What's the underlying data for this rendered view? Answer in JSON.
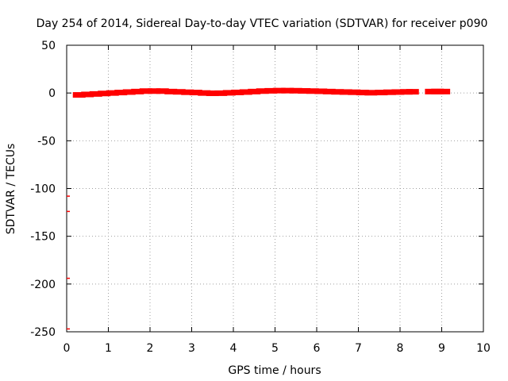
{
  "chart_data": {
    "type": "scatter",
    "title": "Day 254 of 2014, Sidereal Day-to-day VTEC variation (SDTVAR) for receiver p090",
    "xlabel": "GPS time / hours",
    "ylabel": "SDTVAR / TECUs",
    "xlim": [
      0,
      10
    ],
    "ylim": [
      -250,
      50
    ],
    "x_ticks": [
      0,
      1,
      2,
      3,
      4,
      5,
      6,
      7,
      8,
      9,
      10
    ],
    "y_ticks": [
      50,
      0,
      -50,
      -100,
      -150,
      -200,
      -250
    ],
    "grid": true,
    "legend": "none",
    "series": [
      {
        "color": "#ff0000",
        "x": [
          0.3,
          0.5,
          0.7,
          0.9,
          1.1,
          1.3,
          1.5,
          1.7,
          1.9,
          2.1,
          2.3,
          2.5,
          2.7,
          2.9,
          3.1,
          3.3,
          3.5,
          3.7,
          3.9,
          4.1,
          4.3,
          4.5,
          4.7,
          4.9,
          5.1,
          5.3,
          5.5,
          5.7,
          5.9,
          6.1,
          6.3,
          6.5,
          6.7,
          6.9,
          7.1,
          7.3,
          7.55,
          7.75,
          7.95,
          8.15,
          8.3,
          8.75,
          8.9,
          9.05
        ],
        "y": [
          -2,
          -1.5,
          -1,
          -0.5,
          0,
          0.5,
          1,
          1.5,
          2,
          2,
          2,
          1.5,
          1.2,
          0.8,
          0.5,
          0,
          -0.3,
          -0.2,
          0.2,
          0.6,
          1,
          1.5,
          2,
          2.3,
          2.5,
          2.5,
          2.4,
          2.2,
          2,
          1.8,
          1.5,
          1.2,
          1,
          0.8,
          0.5,
          0.3,
          0.5,
          0.8,
          1,
          1.2,
          1.3,
          1.5,
          1.6,
          1.5
        ]
      },
      {
        "color": "#ff0000",
        "x": [
          0,
          0,
          0,
          0
        ],
        "y": [
          -108,
          -124,
          -194,
          -247
        ]
      }
    ]
  }
}
